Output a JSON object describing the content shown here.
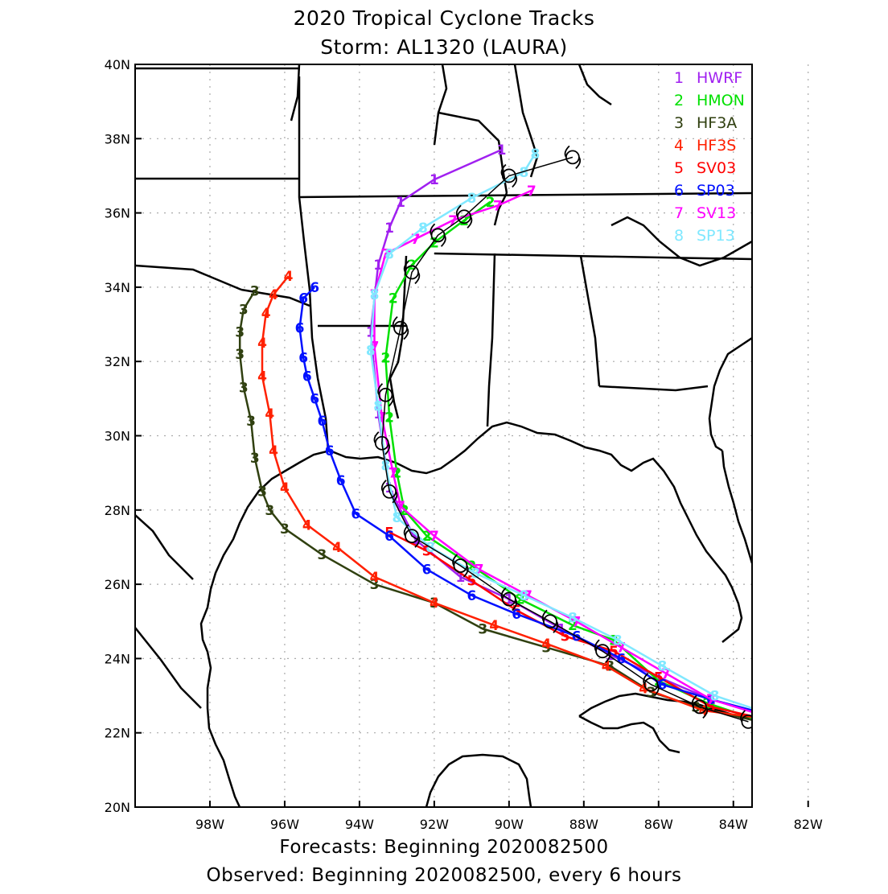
{
  "header": {
    "title_line1": "2020 Tropical Cyclone Tracks",
    "title_line2": "Storm: AL1320 (LAURA)"
  },
  "footer": {
    "line1": "Forecasts: Beginning 2020082500",
    "line2": "Observed: Beginning 2020082500, every 6 hours"
  },
  "map": {
    "lat_range": [
      20,
      40
    ],
    "lon_range": [
      -100,
      -83.5
    ],
    "lat_labels": [
      "40N",
      "38N",
      "36N",
      "34N",
      "32N",
      "30N",
      "28N",
      "26N",
      "24N",
      "22N",
      "20N"
    ],
    "lat_values": [
      40,
      38,
      36,
      34,
      32,
      30,
      28,
      26,
      24,
      22,
      20
    ],
    "lon_labels": [
      "98W",
      "96W",
      "94W",
      "92W",
      "90W",
      "88W",
      "86W",
      "84W",
      "82W"
    ],
    "lon_values": [
      -98,
      -96,
      -94,
      -92,
      -90,
      -88,
      -86,
      -84,
      -82
    ],
    "grid": "dotted",
    "land_color": "#ffffff",
    "coast_color": "#000000"
  },
  "legend": {
    "placement": "top-right",
    "items": [
      {
        "num": "1",
        "name": "HWRF",
        "color": "#a020f0"
      },
      {
        "num": "2",
        "name": "HMON",
        "color": "#00e000"
      },
      {
        "num": "3",
        "name": "HF3A",
        "color": "#304010"
      },
      {
        "num": "4",
        "name": "HF3S",
        "color": "#ff2000"
      },
      {
        "num": "5",
        "name": "SV03",
        "color": "#ff0000"
      },
      {
        "num": "6",
        "name": "SP03",
        "color": "#0010ff"
      },
      {
        "num": "7",
        "name": "SV13",
        "color": "#ff00ff"
      },
      {
        "num": "8",
        "name": "SP13",
        "color": "#80e8ff"
      }
    ]
  },
  "tracks": [
    {
      "id": "1",
      "name": "HWRF",
      "color": "#a020f0",
      "points": [
        [
          -83.2,
          22.5
        ],
        [
          -84.6,
          22.9
        ],
        [
          -86.0,
          23.5
        ],
        [
          -87.3,
          24.1
        ],
        [
          -88.6,
          24.8
        ],
        [
          -90.0,
          25.6
        ],
        [
          -91.3,
          26.2
        ],
        [
          -92.5,
          27.2
        ],
        [
          -93.2,
          28.6
        ],
        [
          -93.5,
          30.6
        ],
        [
          -93.7,
          32.8
        ],
        [
          -93.5,
          34.6
        ],
        [
          -93.2,
          35.6
        ],
        [
          -92.9,
          36.3
        ],
        [
          -92.0,
          36.9
        ],
        [
          -90.2,
          37.7
        ]
      ]
    },
    {
      "id": "2",
      "name": "HMON",
      "color": "#00e000",
      "points": [
        [
          -83.2,
          22.3
        ],
        [
          -84.7,
          22.8
        ],
        [
          -86.0,
          23.4
        ],
        [
          -87.2,
          24.5
        ],
        [
          -88.3,
          24.9
        ],
        [
          -89.7,
          25.6
        ],
        [
          -91.0,
          26.5
        ],
        [
          -92.2,
          27.3
        ],
        [
          -92.8,
          28.0
        ],
        [
          -93.0,
          29.0
        ],
        [
          -93.2,
          30.5
        ],
        [
          -93.3,
          32.1
        ],
        [
          -93.1,
          33.7
        ],
        [
          -92.6,
          34.6
        ],
        [
          -92.0,
          35.2
        ],
        [
          -91.2,
          35.8
        ],
        [
          -90.5,
          36.3
        ]
      ]
    },
    {
      "id": "3",
      "name": "HF3A",
      "color": "#304010",
      "points": [
        [
          -83.3,
          22.3
        ],
        [
          -85.0,
          22.7
        ],
        [
          -86.2,
          23.1
        ],
        [
          -87.3,
          23.8
        ],
        [
          -89.0,
          24.3
        ],
        [
          -90.7,
          24.8
        ],
        [
          -92.0,
          25.5
        ],
        [
          -93.6,
          26.0
        ],
        [
          -95.0,
          26.8
        ],
        [
          -96.0,
          27.5
        ],
        [
          -96.4,
          28.0
        ],
        [
          -96.6,
          28.5
        ],
        [
          -96.8,
          29.4
        ],
        [
          -96.9,
          30.4
        ],
        [
          -97.1,
          31.3
        ],
        [
          -97.2,
          32.2
        ],
        [
          -97.2,
          32.8
        ],
        [
          -97.1,
          33.4
        ],
        [
          -96.8,
          33.9
        ]
      ]
    },
    {
      "id": "4",
      "name": "HF3S",
      "color": "#ff2000",
      "points": [
        [
          -83.3,
          22.4
        ],
        [
          -84.8,
          22.6
        ],
        [
          -86.4,
          23.2
        ],
        [
          -87.4,
          23.8
        ],
        [
          -89.0,
          24.4
        ],
        [
          -90.4,
          24.9
        ],
        [
          -92.0,
          25.5
        ],
        [
          -93.6,
          26.2
        ],
        [
          -94.6,
          27.0
        ],
        [
          -95.4,
          27.6
        ],
        [
          -96.0,
          28.6
        ],
        [
          -96.3,
          29.6
        ],
        [
          -96.4,
          30.6
        ],
        [
          -96.6,
          31.6
        ],
        [
          -96.6,
          32.5
        ],
        [
          -96.5,
          33.3
        ],
        [
          -96.3,
          33.8
        ],
        [
          -95.9,
          34.3
        ]
      ]
    },
    {
      "id": "5",
      "name": "SV03",
      "color": "#ff0000",
      "points": [
        [
          -83.3,
          22.4
        ],
        [
          -84.6,
          22.7
        ],
        [
          -86.0,
          23.5
        ],
        [
          -87.2,
          24.2
        ],
        [
          -88.5,
          24.6
        ],
        [
          -89.8,
          25.3
        ],
        [
          -91.0,
          26.1
        ],
        [
          -92.2,
          26.9
        ],
        [
          -93.2,
          27.4
        ]
      ]
    },
    {
      "id": "6",
      "name": "SP03",
      "color": "#0010ff",
      "points": [
        [
          -83.1,
          22.5
        ],
        [
          -84.6,
          22.9
        ],
        [
          -85.9,
          23.3
        ],
        [
          -87.0,
          24.0
        ],
        [
          -88.2,
          24.6
        ],
        [
          -89.8,
          25.2
        ],
        [
          -91.0,
          25.7
        ],
        [
          -92.2,
          26.4
        ],
        [
          -93.2,
          27.3
        ],
        [
          -94.1,
          27.9
        ],
        [
          -94.5,
          28.8
        ],
        [
          -94.8,
          29.6
        ],
        [
          -95.0,
          30.4
        ],
        [
          -95.2,
          31.0
        ],
        [
          -95.4,
          31.6
        ],
        [
          -95.5,
          32.1
        ],
        [
          -95.6,
          32.9
        ],
        [
          -95.5,
          33.7
        ],
        [
          -95.2,
          34.0
        ]
      ]
    },
    {
      "id": "7",
      "name": "SV13",
      "color": "#ff00ff",
      "points": [
        [
          -83.3,
          22.5
        ],
        [
          -84.6,
          22.9
        ],
        [
          -85.8,
          23.6
        ],
        [
          -87.0,
          24.3
        ],
        [
          -88.2,
          25.0
        ],
        [
          -89.5,
          25.7
        ],
        [
          -90.8,
          26.4
        ],
        [
          -92.0,
          27.3
        ],
        [
          -92.9,
          28.1
        ],
        [
          -93.1,
          29.0
        ],
        [
          -93.4,
          30.5
        ],
        [
          -93.6,
          32.4
        ],
        [
          -93.6,
          33.8
        ],
        [
          -93.3,
          34.9
        ],
        [
          -92.5,
          35.3
        ],
        [
          -91.5,
          35.8
        ],
        [
          -90.3,
          36.2
        ],
        [
          -89.4,
          36.6
        ]
      ]
    },
    {
      "id": "8",
      "name": "SP13",
      "color": "#80e8ff",
      "points": [
        [
          -83.3,
          22.6
        ],
        [
          -84.5,
          23.0
        ],
        [
          -85.9,
          23.8
        ],
        [
          -87.1,
          24.5
        ],
        [
          -88.3,
          25.1
        ],
        [
          -89.6,
          25.7
        ],
        [
          -90.9,
          26.3
        ],
        [
          -92.1,
          27.0
        ],
        [
          -93.0,
          27.8
        ],
        [
          -93.3,
          29.2
        ],
        [
          -93.5,
          30.8
        ],
        [
          -93.7,
          32.3
        ],
        [
          -93.6,
          33.8
        ],
        [
          -93.2,
          34.9
        ],
        [
          -92.3,
          35.6
        ],
        [
          -91.0,
          36.4
        ],
        [
          -89.6,
          37.1
        ],
        [
          -89.3,
          37.6
        ]
      ]
    }
  ],
  "observed": {
    "name": "Observed",
    "color": "#000000",
    "points": [
      [
        -83.6,
        22.3
      ],
      [
        -84.9,
        22.7
      ],
      [
        -86.2,
        23.3
      ],
      [
        -87.5,
        24.2
      ],
      [
        -88.9,
        25.0
      ],
      [
        -90.0,
        25.6
      ],
      [
        -91.3,
        26.5
      ],
      [
        -92.6,
        27.3
      ],
      [
        -93.2,
        28.5
      ],
      [
        -93.4,
        29.8
      ],
      [
        -93.3,
        31.1
      ],
      [
        -92.9,
        32.9
      ],
      [
        -92.6,
        34.4
      ],
      [
        -91.9,
        35.4
      ],
      [
        -91.2,
        35.9
      ],
      [
        -90.0,
        37.0
      ],
      [
        -88.3,
        37.5
      ]
    ]
  }
}
